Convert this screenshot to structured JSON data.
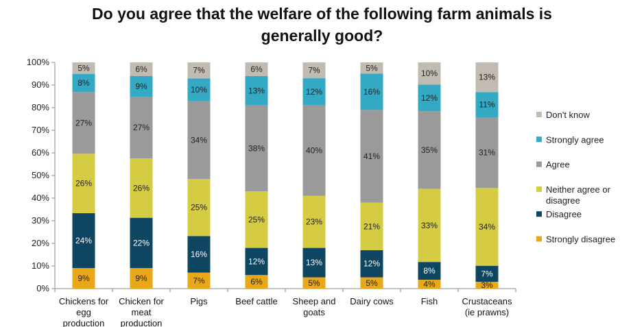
{
  "chart_data": {
    "type": "bar",
    "stacked": true,
    "percent_stacked": true,
    "title_lines": [
      "Do you agree that the welfare of the following farm animals is",
      "generally good?"
    ],
    "xlabel": "",
    "ylabel": "",
    "ylim": [
      0,
      100
    ],
    "y_ticks": [
      "0%",
      "10%",
      "20%",
      "30%",
      "40%",
      "50%",
      "60%",
      "70%",
      "80%",
      "90%",
      "100%"
    ],
    "grid": false,
    "legend_position": "right",
    "categories": [
      [
        "Chickens for",
        "egg",
        "production"
      ],
      [
        "Chicken for",
        "meat",
        "production"
      ],
      [
        "Pigs"
      ],
      [
        "Beef cattle"
      ],
      [
        "Sheep and",
        "goats"
      ],
      [
        "Dairy cows"
      ],
      [
        "Fish"
      ],
      [
        "Crustaceans",
        "(ie prawns)"
      ]
    ],
    "series": [
      {
        "name": "Strongly disagree",
        "color": "#E8A81A",
        "label_color": "#222222",
        "values": [
          9,
          9,
          7,
          6,
          5,
          5,
          4,
          3
        ]
      },
      {
        "name": "Disagree",
        "color": "#0E4560",
        "label_color": "#ffffff",
        "values": [
          24,
          22,
          16,
          12,
          13,
          12,
          8,
          7
        ]
      },
      {
        "name": "Neither agree or disagree",
        "color": "#D6CC44",
        "label_color": "#222222",
        "values": [
          26,
          26,
          25,
          25,
          23,
          21,
          33,
          34
        ]
      },
      {
        "name": "Agree",
        "color": "#9A9A9A",
        "label_color": "#222222",
        "values": [
          27,
          27,
          34,
          38,
          40,
          41,
          35,
          31
        ]
      },
      {
        "name": "Strongly agree",
        "color": "#34A9C4",
        "label_color": "#222222",
        "values": [
          8,
          9,
          10,
          13,
          12,
          16,
          12,
          11
        ]
      },
      {
        "name": "Don't know",
        "color": "#C2BBB2",
        "label_color": "#222222",
        "values": [
          5,
          6,
          7,
          6,
          7,
          5,
          10,
          13
        ]
      }
    ],
    "legend_order": [
      "Don't know",
      "Strongly agree",
      "Agree",
      "Neither agree or disagree",
      "Disagree",
      "Strongly disagree"
    ]
  }
}
